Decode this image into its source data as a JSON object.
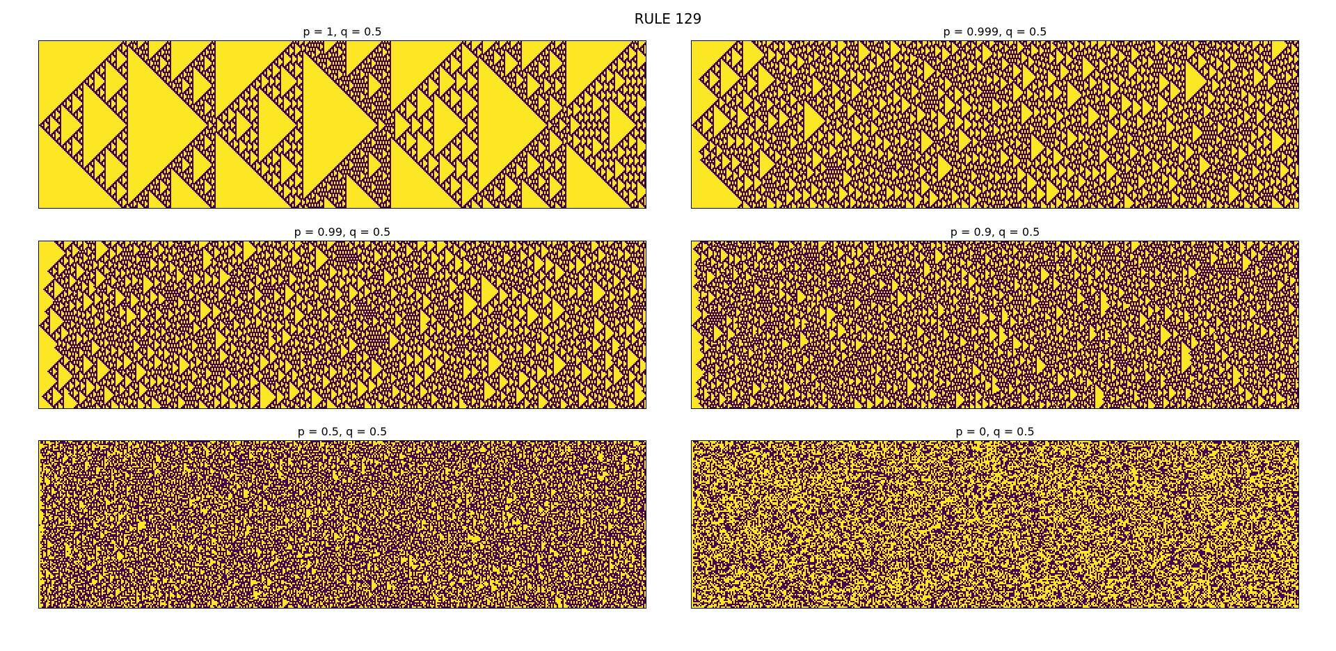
{
  "figure": {
    "title": "RULE 129"
  },
  "colors": {
    "on": "#fde725",
    "off": "#440154"
  },
  "chart_data": [
    {
      "type": "heatmap",
      "title": "p = 1, q = 0.5",
      "params": {
        "rule": 129,
        "p": 1,
        "q": 0.5
      },
      "colormap": "viridis",
      "values": [
        0,
        1
      ],
      "xlabel": "",
      "ylabel": "",
      "axes_ticks": false
    },
    {
      "type": "heatmap",
      "title": "p = 0.999, q = 0.5",
      "params": {
        "rule": 129,
        "p": 0.999,
        "q": 0.5
      },
      "colormap": "viridis",
      "values": [
        0,
        1
      ],
      "xlabel": "",
      "ylabel": "",
      "axes_ticks": false
    },
    {
      "type": "heatmap",
      "title": "p = 0.99, q = 0.5",
      "params": {
        "rule": 129,
        "p": 0.99,
        "q": 0.5
      },
      "colormap": "viridis",
      "values": [
        0,
        1
      ],
      "xlabel": "",
      "ylabel": "",
      "axes_ticks": false
    },
    {
      "type": "heatmap",
      "title": "p = 0.9, q = 0.5",
      "params": {
        "rule": 129,
        "p": 0.9,
        "q": 0.5
      },
      "colormap": "viridis",
      "values": [
        0,
        1
      ],
      "xlabel": "",
      "ylabel": "",
      "axes_ticks": false
    },
    {
      "type": "heatmap",
      "title": "p = 0.5, q = 0.5",
      "params": {
        "rule": 129,
        "p": 0.5,
        "q": 0.5
      },
      "colormap": "viridis",
      "values": [
        0,
        1
      ],
      "xlabel": "",
      "ylabel": "",
      "axes_ticks": false
    },
    {
      "type": "heatmap",
      "title": "p = 0, q = 0.5",
      "params": {
        "rule": 129,
        "p": 0,
        "q": 0.5
      },
      "colormap": "viridis",
      "values": [
        0,
        1
      ],
      "xlabel": "",
      "ylabel": "",
      "axes_ticks": false
    }
  ]
}
